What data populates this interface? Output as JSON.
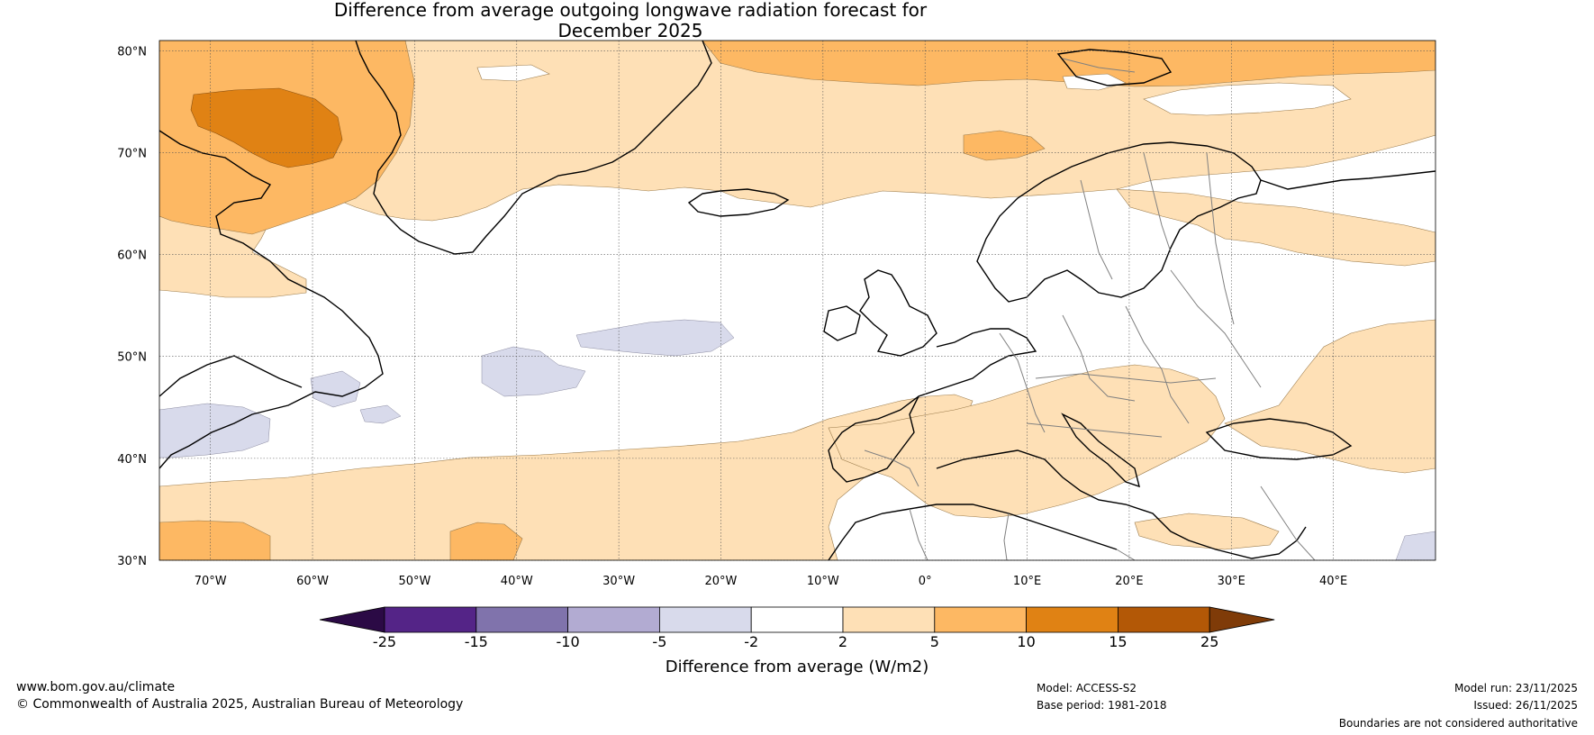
{
  "title": {
    "line1": "Difference from average outgoing longwave radiation forecast for",
    "line2": "December 2025"
  },
  "map": {
    "lat_labels": [
      "80°N",
      "70°N",
      "60°N",
      "50°N",
      "40°N",
      "30°N"
    ],
    "lon_labels": [
      "70°W",
      "60°W",
      "50°W",
      "40°W",
      "30°W",
      "20°W",
      "10°W",
      "0°",
      "10°E",
      "20°E",
      "30°E",
      "40°E"
    ],
    "extent": {
      "lon_min": -75,
      "lon_max": 50,
      "lat_min": 30,
      "lat_max": 81
    }
  },
  "colorbar": {
    "ticks": [
      "-25",
      "-15",
      "-10",
      "-5",
      "-2",
      "2",
      "5",
      "10",
      "15",
      "25"
    ],
    "colors": [
      "#2b0a45",
      "#542487",
      "#8073ac",
      "#b2abd2",
      "#d8daeb",
      "#ffffff",
      "#fee0b6",
      "#fdb863",
      "#e08214",
      "#b35806",
      "#7f3b08"
    ],
    "label": "Difference from average (W/m2)"
  },
  "footer": {
    "url": "www.bom.gov.au/climate",
    "copyright": "© Commonwealth of Australia 2025, Australian Bureau of Meteorology",
    "model": "Model: ACCESS-S2",
    "base_period": "Base period: 1981-2018",
    "model_run": "Model run: 23/11/2025",
    "issued": "Issued: 26/11/2025",
    "disclaimer": "Boundaries are not considered authoritative"
  }
}
